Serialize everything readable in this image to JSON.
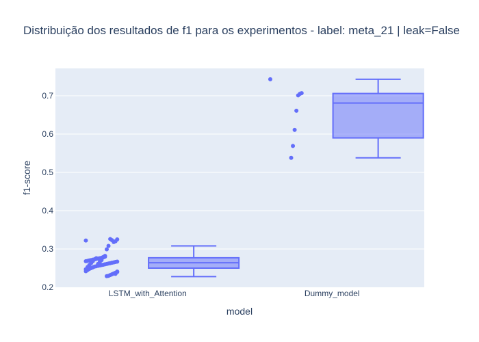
{
  "chart_data": {
    "type": "box",
    "title": "Distribuição dos resultados de f1 para os experimentos - label: meta_21 | leak=False",
    "xlabel": "model",
    "ylabel": "f1-score",
    "ylim": [
      0.2,
      0.76
    ],
    "yticks": [
      0.2,
      0.3,
      0.4,
      0.5,
      0.6,
      0.7
    ],
    "ytick_labels": [
      "0.2",
      "0.3",
      "0.4",
      "0.5",
      "0.6",
      "0.7"
    ],
    "categories": [
      "LSTM_with_Attention",
      "Dummy_model"
    ],
    "grid": true,
    "colors": {
      "plot_bg": "#e5ecf6",
      "grid": "#ffffff",
      "box_line": "#636efa",
      "box_fill": "rgba(99,110,250,0.5)",
      "points": "#636efa",
      "text": "#2a3f5f"
    },
    "boxes": [
      {
        "name": "LSTM_with_Attention",
        "min": 0.228,
        "q1": 0.25,
        "median": 0.264,
        "q3": 0.277,
        "max": 0.308,
        "points": [
          0.322,
          0.325,
          0.32,
          0.318,
          0.323,
          0.326,
          0.308,
          0.299,
          0.28,
          0.278,
          0.277,
          0.276,
          0.275,
          0.274,
          0.273,
          0.272,
          0.271,
          0.27,
          0.269,
          0.268,
          0.267,
          0.266,
          0.265,
          0.264,
          0.263,
          0.262,
          0.261,
          0.26,
          0.259,
          0.258,
          0.257,
          0.256,
          0.255,
          0.254,
          0.252,
          0.25,
          0.248,
          0.245,
          0.242,
          0.24,
          0.238,
          0.236,
          0.234,
          0.232,
          0.23,
          0.229,
          0.282,
          0.279,
          0.271,
          0.266,
          0.261,
          0.276,
          0.273,
          0.268,
          0.263,
          0.258,
          0.253,
          0.247,
          0.241,
          0.235
        ]
      },
      {
        "name": "Dummy_model",
        "min": 0.538,
        "q1": 0.59,
        "median": 0.681,
        "q3": 0.706,
        "max": 0.743,
        "points": [
          0.743,
          0.707,
          0.705,
          0.701,
          0.661,
          0.611,
          0.569,
          0.538
        ]
      }
    ]
  }
}
